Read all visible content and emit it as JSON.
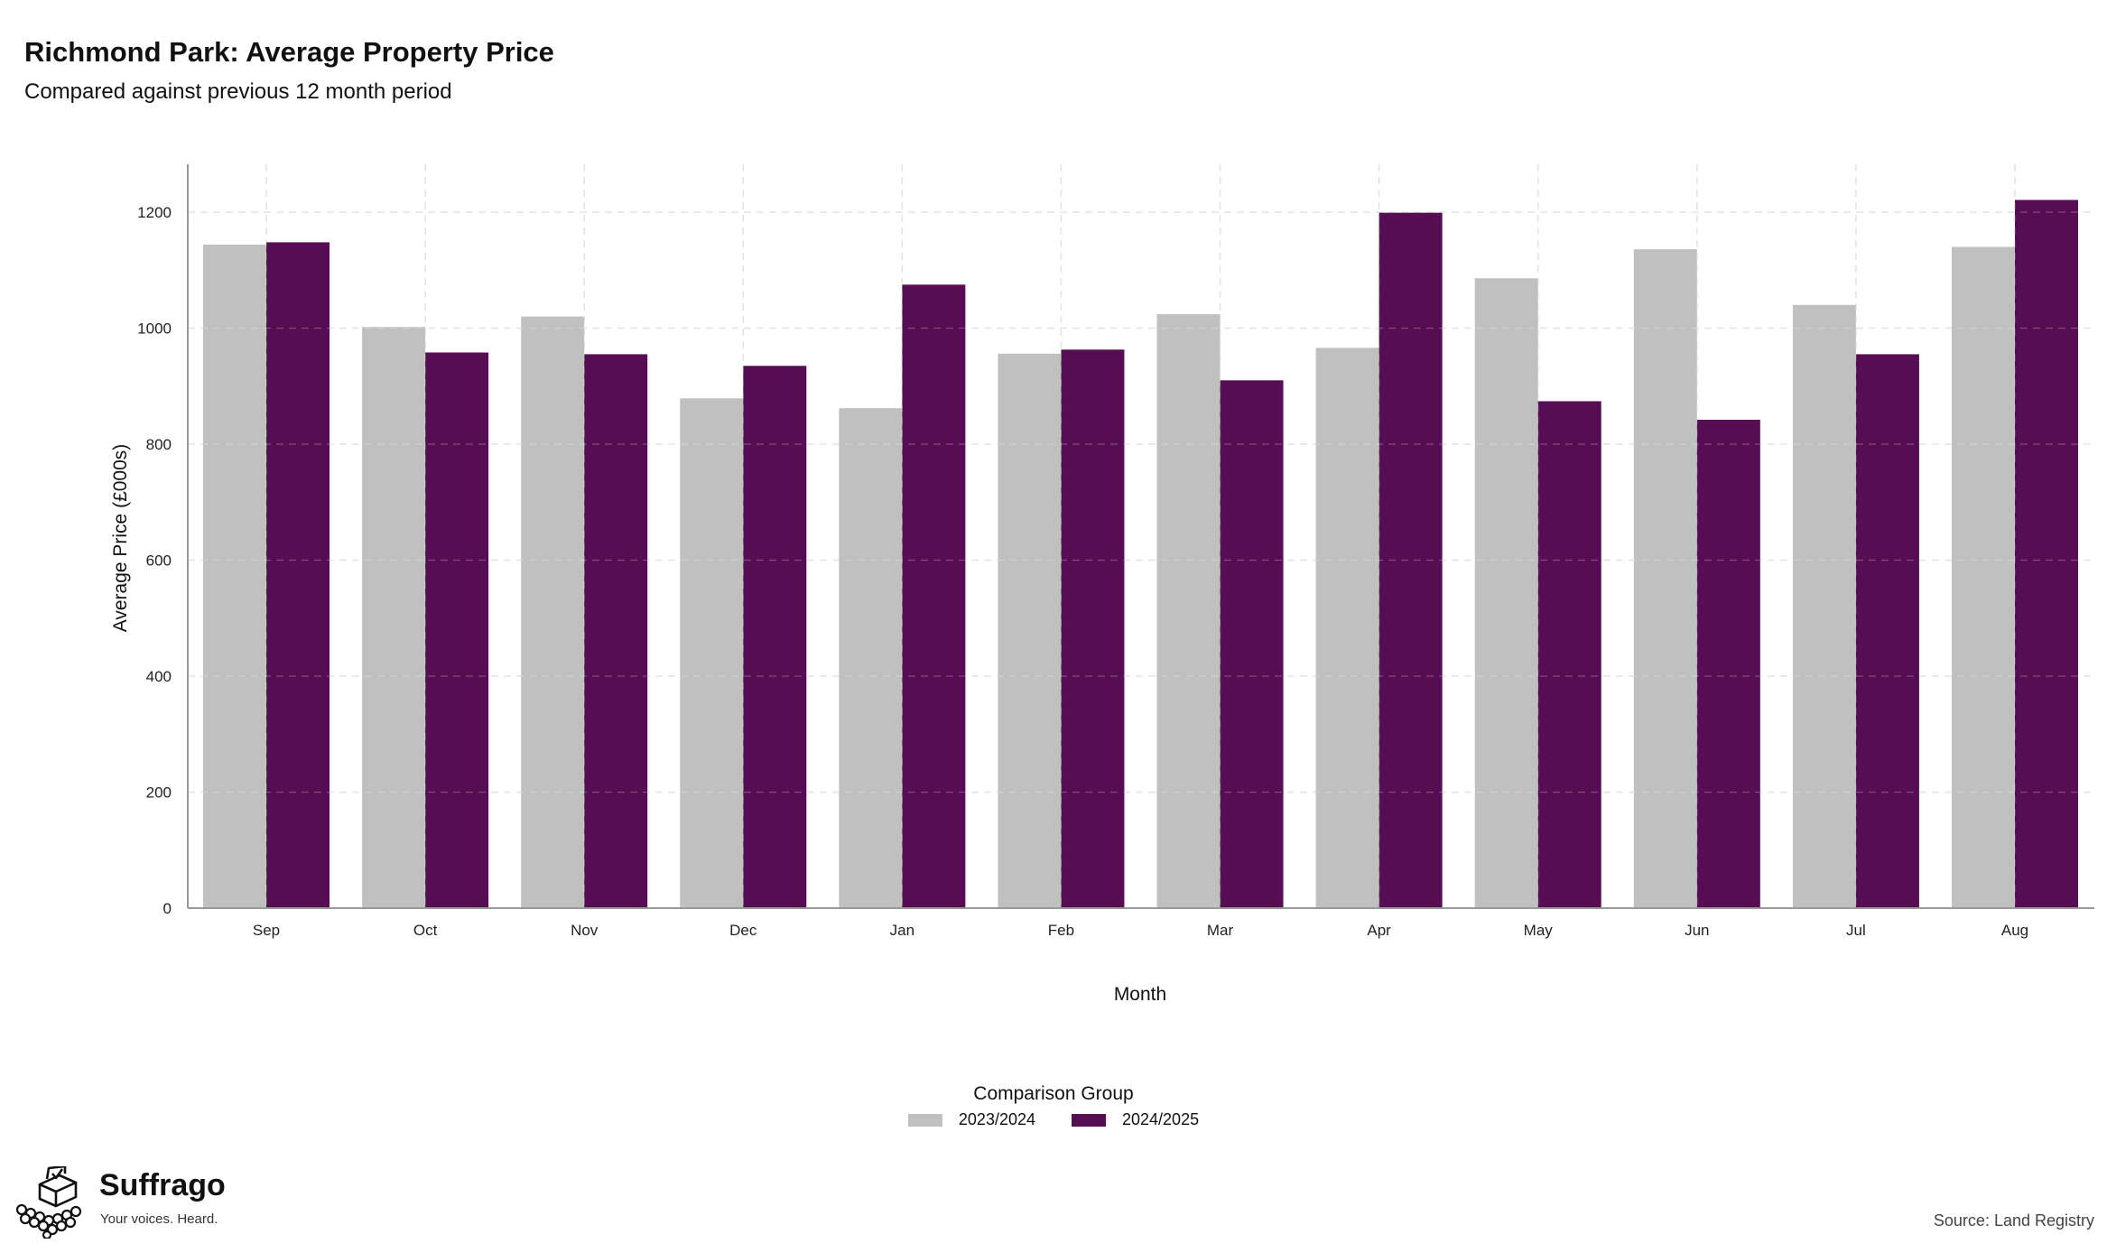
{
  "header": {
    "title": "Richmond Park: Average Property Price",
    "subtitle": "Compared against previous 12 month period"
  },
  "colors": {
    "previous": "#c0c0c0",
    "current": "#560d52",
    "grid": "#dcdcdc",
    "axis": "#999999"
  },
  "chart_data": {
    "type": "bar",
    "title": "Richmond Park: Average Property Price",
    "subtitle": "Compared against previous 12 month period",
    "xlabel": "Month",
    "ylabel": "Average Price (£000s)",
    "ylim": [
      0,
      1200
    ],
    "yticks": [
      0,
      200,
      400,
      600,
      800,
      1000,
      1200
    ],
    "grid": true,
    "legend_position": "bottom",
    "legend_title": "Comparison Group",
    "categories": [
      "Sep",
      "Oct",
      "Nov",
      "Dec",
      "Jan",
      "Feb",
      "Mar",
      "Apr",
      "May",
      "Jun",
      "Jul",
      "Aug"
    ],
    "series": [
      {
        "name": "2023/2024",
        "color": "#c0c0c0",
        "values": [
          1144,
          1002,
          1020,
          879,
          862,
          956,
          1024,
          966,
          1086,
          1136,
          1040,
          1140
        ]
      },
      {
        "name": "2024/2025",
        "color": "#560d52",
        "values": [
          1148,
          958,
          955,
          935,
          1075,
          963,
          910,
          1199,
          874,
          842,
          955,
          1221
        ]
      }
    ]
  },
  "footer": {
    "brand_name": "Suffrago",
    "brand_tagline": "Your voices. Heard.",
    "source": "Source: Land Registry"
  }
}
